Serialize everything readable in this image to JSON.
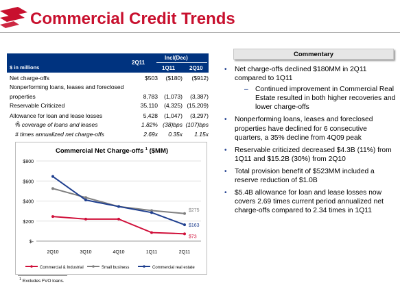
{
  "title": "Commercial Credit Trends",
  "table": {
    "header": {
      "money_label": "$ in millions",
      "col_current": "2Q11",
      "group_label": "Incl(Dec)",
      "col_prev1": "1Q11",
      "col_prev2": "2Q10"
    },
    "rows": [
      {
        "label": "Net charge-offs",
        "v1": "$503",
        "v2": "($180)",
        "v3": "($912)"
      },
      {
        "label": "Nonperforming loans, leases and foreclosed",
        "v1": "",
        "v2": "",
        "v3": ""
      },
      {
        "label": "properties",
        "v1": "8,783",
        "v2": "(1,073)",
        "v3": "(3,387)"
      },
      {
        "label": "Reservable Criticized",
        "v1": "35,110",
        "v2": "(4,325)",
        "v3": "(15,209)"
      },
      {
        "label": "Allowance for loan and lease losses",
        "v1": "5,428",
        "v2": "(1,047)",
        "v3": "(3,297)"
      },
      {
        "label": "% coverage of loans and leases",
        "sup": "1",
        "v1": "1.82%",
        "v2": "(38)bps",
        "v3": "(107)bps"
      },
      {
        "label": "# times annualized net charge-offs",
        "v1": "2.69x",
        "v2": "0.35x",
        "v3": "1.15x"
      }
    ]
  },
  "chart_data": {
    "type": "line",
    "title": "Commercial Net Charge-offs",
    "title_sup": "1",
    "title_suffix": "($MM)",
    "categories": [
      "2Q10",
      "3Q10",
      "4Q10",
      "1Q11",
      "2Q11"
    ],
    "ylim": [
      0,
      800
    ],
    "yticks": [
      0,
      200,
      400,
      600,
      800
    ],
    "ytick_labels": [
      "$-",
      "$200",
      "$400",
      "$600",
      "$800"
    ],
    "grid": true,
    "legend_position": "bottom",
    "series": [
      {
        "name": "Commercial & Industrial",
        "color": "#d0103a",
        "values": [
          245,
          220,
          220,
          85,
          73
        ],
        "end_label": "$73"
      },
      {
        "name": "Small business",
        "color": "#808080",
        "values": [
          525,
          435,
          345,
          305,
          275
        ],
        "end_label": "$275"
      },
      {
        "name": "Commercial real estate",
        "color": "#1f3f8f",
        "values": [
          645,
          410,
          345,
          285,
          163
        ],
        "end_label": "$163"
      }
    ]
  },
  "footnote": {
    "sup": "1",
    "text": "Excludes FVO loans."
  },
  "commentary": {
    "header": "Commentary",
    "bullets": [
      {
        "text": "Net charge-offs declined $180MM in 2Q11 compared to 1Q11",
        "sub": "Continued improvement in Commercial Real Estate resulted in both higher recoveries and lower charge-offs"
      },
      {
        "text": "Nonperforming loans, leases and foreclosed properties have declined for 6 consecutive quarters, a 35% decline from 4Q09 peak"
      },
      {
        "text": "Reservable criticized decreased $4.3B (11%) from 1Q11 and $15.2B (30%) from 2Q10"
      },
      {
        "text": "Total provision benefit of $523MM included a reserve reduction of $1.0B"
      },
      {
        "text": "$5.4B allowance for loan and lease losses now covers 2.69 times current period annualized net charge-offs compared to 2.34 times in 1Q11"
      }
    ]
  },
  "colors": {
    "title": "#c8102e",
    "table_header": "#00337f",
    "bullet": "#1f3f8f"
  },
  "icons": {
    "logo": "flag-logo-icon"
  }
}
